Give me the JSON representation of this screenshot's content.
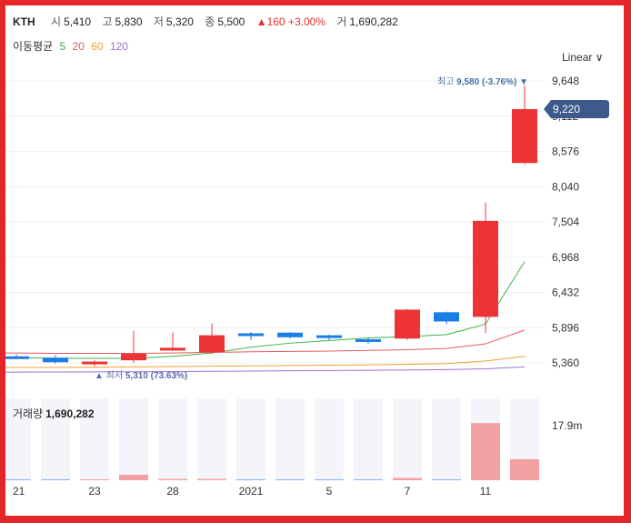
{
  "header": {
    "symbol": "KTH",
    "open_label": "시",
    "open": "5,410",
    "high_label": "고",
    "high": "5,830",
    "low_label": "저",
    "low": "5,320",
    "close_label": "종",
    "close": "5,500",
    "change": "▲160 +3.00%",
    "volume_label": "거",
    "volume": "1,690,282"
  },
  "ma_legend": {
    "title": "이동평균",
    "periods": [
      "5",
      "20",
      "60",
      "120"
    ],
    "colors": [
      "#39b54a",
      "#e8585b",
      "#f0a030",
      "#a070d0"
    ]
  },
  "scale_selector": "Linear ∨",
  "volume_panel": {
    "title": "거래량",
    "value": "1,690,282",
    "axis_tick": "17.9m"
  },
  "colors": {
    "up": "#ec3336",
    "down": "#1a7ee6",
    "current_price_tag": "#3d5a8a",
    "frame": "#e52528"
  },
  "chart_data": {
    "type": "candlestick",
    "y_ticks": [
      5360,
      5896,
      6432,
      6968,
      7504,
      8040,
      8576,
      9112,
      9648
    ],
    "y_tick_labels": [
      "5,360",
      "5,896",
      "6,432",
      "6,968",
      "7,504",
      "8,040",
      "8,576",
      "9,112",
      "9,648"
    ],
    "x_tick_labels": [
      "21",
      "23",
      "28",
      "2021",
      "5",
      "7",
      "11"
    ],
    "x_tick_positions": [
      0,
      2,
      4,
      6,
      8,
      10,
      12
    ],
    "candles": [
      {
        "o": 5460,
        "h": 5490,
        "l": 5420,
        "c": 5430
      },
      {
        "o": 5440,
        "h": 5480,
        "l": 5350,
        "c": 5370
      },
      {
        "o": 5350,
        "h": 5400,
        "l": 5310,
        "c": 5380
      },
      {
        "o": 5400,
        "h": 5850,
        "l": 5360,
        "c": 5500
      },
      {
        "o": 5550,
        "h": 5820,
        "l": 5540,
        "c": 5590
      },
      {
        "o": 5520,
        "h": 5960,
        "l": 5500,
        "c": 5780
      },
      {
        "o": 5810,
        "h": 5830,
        "l": 5710,
        "c": 5790
      },
      {
        "o": 5820,
        "h": 5830,
        "l": 5730,
        "c": 5750
      },
      {
        "o": 5780,
        "h": 5790,
        "l": 5700,
        "c": 5740
      },
      {
        "o": 5720,
        "h": 5740,
        "l": 5650,
        "c": 5690
      },
      {
        "o": 5730,
        "h": 6180,
        "l": 5710,
        "c": 6170
      },
      {
        "o": 6130,
        "h": 6140,
        "l": 5950,
        "c": 5990
      },
      {
        "o": 6060,
        "h": 7800,
        "l": 5820,
        "c": 7520
      },
      {
        "o": 8400,
        "h": 9580,
        "l": 8380,
        "c": 9220
      }
    ],
    "volumes_millions": [
      0,
      0,
      0,
      1.2,
      0.3,
      0.3,
      0.1,
      0.1,
      0,
      0,
      0.5,
      0.1,
      12.5,
      4.6
    ],
    "volume_axis_max_millions": 17.9,
    "moving_averages": {
      "ma5": [
        5440,
        5430,
        5430,
        5430,
        5460,
        5510,
        5600,
        5660,
        5700,
        5740,
        5760,
        5790,
        5950,
        6900
      ],
      "ma20": [
        5510,
        5505,
        5505,
        5505,
        5510,
        5520,
        5530,
        5535,
        5540,
        5550,
        5560,
        5580,
        5650,
        5860
      ],
      "ma60": [
        5290,
        5290,
        5295,
        5300,
        5305,
        5310,
        5315,
        5320,
        5325,
        5330,
        5340,
        5350,
        5390,
        5460
      ],
      "ma120": [
        5220,
        5222,
        5224,
        5226,
        5228,
        5232,
        5236,
        5240,
        5244,
        5248,
        5252,
        5258,
        5270,
        5300
      ]
    },
    "annotations": {
      "high": {
        "label": "최고",
        "value": "9,580 (-3.76%)",
        "marker": "▼"
      },
      "low": {
        "label": "최저",
        "value": "5,310 (73.63%)",
        "marker": "▲"
      },
      "current_price": "9,220"
    }
  }
}
